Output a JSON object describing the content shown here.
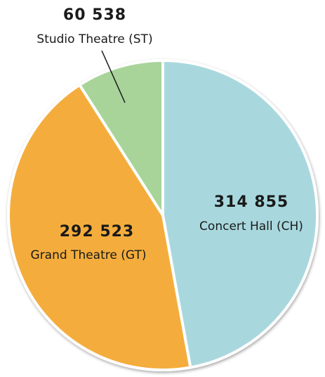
{
  "chart_data": {
    "type": "pie",
    "categories": [
      "Concert Hall (CH)",
      "Grand Theatre (GT)",
      "Studio Theatre (ST)"
    ],
    "values": [
      314855,
      292523,
      60538
    ],
    "value_labels": [
      "314 855",
      "292 523",
      "60 538"
    ],
    "colors": [
      "#a8d8de",
      "#f4ad3d",
      "#a8d49a"
    ]
  }
}
